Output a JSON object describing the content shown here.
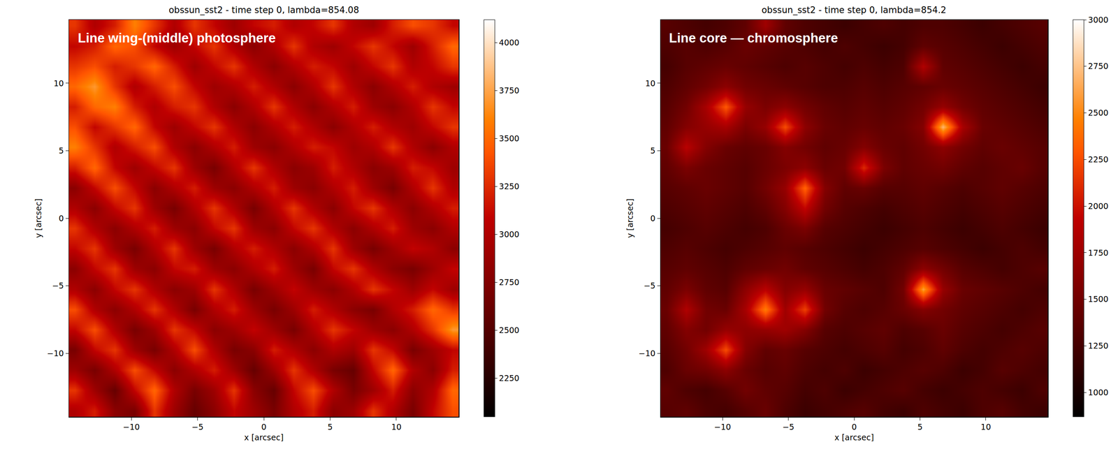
{
  "chart_data": [
    {
      "type": "heatmap",
      "title": "obssun_sst2 - time step 0, lambda=854.08",
      "annotation": "Line wing-(middle) photosphere",
      "x_label": "x [arcsec]",
      "y_label": "y [arcsec]",
      "color": "gist_heat",
      "xlim": [
        -14.7,
        14.7
      ],
      "ylim": [
        -14.7,
        14.7
      ],
      "xticks": [
        -10,
        -5,
        0,
        5,
        10
      ],
      "yticks": [
        -10,
        -5,
        0,
        5,
        10
      ],
      "colorbar_range": [
        2050,
        4120
      ],
      "colorbar_ticks": [
        2250,
        2500,
        2750,
        3000,
        3250,
        3500,
        3750,
        4000
      ],
      "x": [
        -14.25,
        -12.75,
        -11.25,
        -9.75,
        -8.25,
        -6.75,
        -5.25,
        -3.75,
        -2.25,
        -0.75,
        0.75,
        2.25,
        3.75,
        5.25,
        6.75,
        8.25,
        9.75,
        11.25,
        12.75,
        14.25
      ],
      "y": [
        -14.25,
        -12.75,
        -11.25,
        -9.75,
        -8.25,
        -6.75,
        -5.25,
        -3.75,
        -2.25,
        -0.75,
        0.75,
        2.25,
        3.75,
        5.25,
        6.75,
        8.25,
        9.75,
        11.25,
        12.75,
        14.25
      ],
      "z": [
        [
          3000,
          3200,
          2800,
          2700,
          3300,
          2900,
          2600,
          2800,
          3100,
          2900,
          2700,
          3000,
          3200,
          2800,
          2900,
          3300,
          3000,
          2700,
          3100,
          3400
        ],
        [
          3300,
          2900,
          2600,
          3100,
          3500,
          3000,
          2700,
          2900,
          3300,
          2800,
          2600,
          3100,
          3400,
          3000,
          2700,
          2900,
          3200,
          2800,
          3000,
          3500
        ],
        [
          2900,
          2700,
          3000,
          3400,
          3100,
          2800,
          3000,
          3200,
          2900,
          2600,
          2900,
          3300,
          3000,
          2700,
          2600,
          3100,
          3500,
          3000,
          2800,
          3200
        ],
        [
          2700,
          3100,
          3300,
          2900,
          2700,
          3000,
          3400,
          3000,
          2700,
          2800,
          3200,
          3000,
          2800,
          3000,
          2900,
          3300,
          3100,
          2700,
          2900,
          3100
        ],
        [
          3100,
          3400,
          3000,
          2700,
          2900,
          3300,
          3100,
          2800,
          2900,
          3100,
          2900,
          2700,
          3000,
          3300,
          3100,
          2900,
          2800,
          3000,
          3300,
          3700
        ],
        [
          3400,
          3000,
          2800,
          3000,
          3300,
          3000,
          2700,
          3000,
          3200,
          2900,
          2700,
          2900,
          3200,
          3000,
          2800,
          2700,
          3000,
          3200,
          3500,
          3300
        ],
        [
          3000,
          2800,
          3100,
          3300,
          3000,
          2800,
          2900,
          3300,
          3000,
          2700,
          2900,
          3100,
          2900,
          2800,
          3000,
          3300,
          3100,
          2900,
          3100,
          2900
        ],
        [
          2800,
          3100,
          3300,
          2900,
          2800,
          3100,
          3200,
          2900,
          2800,
          3000,
          3200,
          2900,
          2700,
          3100,
          3300,
          3000,
          2800,
          2700,
          2900,
          3100
        ],
        [
          3100,
          3300,
          2900,
          2700,
          3000,
          3300,
          2900,
          2700,
          3000,
          3200,
          3000,
          2800,
          3000,
          3300,
          2900,
          2700,
          2900,
          3100,
          3000,
          2800
        ],
        [
          3300,
          3000,
          2800,
          3000,
          3200,
          2900,
          2800,
          3100,
          3300,
          2900,
          2800,
          3100,
          3300,
          3000,
          2800,
          3000,
          3200,
          2900,
          2800,
          3000
        ],
        [
          3000,
          2800,
          3100,
          3300,
          2900,
          2700,
          3000,
          3300,
          3000,
          2700,
          3000,
          3300,
          3000,
          2800,
          3100,
          3300,
          3000,
          2800,
          3000,
          3200
        ],
        [
          2800,
          3100,
          3400,
          3100,
          2800,
          3000,
          3200,
          2900,
          2800,
          3000,
          3200,
          2900,
          2800,
          3000,
          3200,
          2900,
          2700,
          3000,
          3300,
          3000
        ],
        [
          3200,
          3500,
          3100,
          2900,
          3100,
          3300,
          2900,
          2700,
          3000,
          3300,
          3000,
          2800,
          2900,
          3200,
          3000,
          2800,
          2900,
          3200,
          3100,
          2900
        ],
        [
          3600,
          3300,
          3000,
          3200,
          3400,
          3000,
          2800,
          3000,
          3200,
          2900,
          2800,
          3000,
          3200,
          3100,
          2900,
          3000,
          3300,
          3000,
          2800,
          3000
        ],
        [
          3400,
          3100,
          3300,
          3500,
          3100,
          2900,
          3100,
          3300,
          3000,
          2800,
          3000,
          3200,
          3000,
          2800,
          3000,
          3200,
          3000,
          2900,
          3100,
          3300
        ],
        [
          3200,
          3500,
          3600,
          3200,
          3000,
          3200,
          3300,
          3000,
          2800,
          3000,
          3300,
          3000,
          2800,
          3000,
          3200,
          2900,
          2800,
          3000,
          3300,
          3100
        ],
        [
          3500,
          3700,
          3300,
          3000,
          3200,
          3400,
          3100,
          2900,
          3000,
          3200,
          3000,
          2800,
          3000,
          3300,
          3000,
          2800,
          3000,
          3200,
          3000,
          2900
        ],
        [
          3300,
          3400,
          3200,
          3300,
          3500,
          3200,
          2900,
          3100,
          3300,
          3000,
          2800,
          3000,
          3200,
          3100,
          2900,
          3100,
          3300,
          3000,
          3100,
          3300
        ],
        [
          3100,
          3200,
          3500,
          3400,
          3100,
          2900,
          3100,
          3300,
          3000,
          2800,
          3000,
          3300,
          3000,
          2900,
          3100,
          3300,
          3100,
          2900,
          3200,
          3500
        ],
        [
          3300,
          3000,
          3200,
          3600,
          3300,
          3000,
          3300,
          3100,
          2900,
          3100,
          3200,
          3000,
          3100,
          3300,
          3000,
          2900,
          3200,
          3400,
          3300,
          3100
        ]
      ]
    },
    {
      "type": "heatmap",
      "title": "obssun_sst2 - time step 0, lambda=854.2",
      "annotation": "Line core — chromosphere",
      "x_label": "x [arcsec]",
      "y_label": "y [arcsec]",
      "color": "gist_heat",
      "xlim": [
        -14.7,
        14.7
      ],
      "ylim": [
        -14.7,
        14.7
      ],
      "xticks": [
        -10,
        -5,
        0,
        5,
        10
      ],
      "yticks": [
        -10,
        -5,
        0,
        5,
        10
      ],
      "colorbar_range": [
        870,
        3000
      ],
      "colorbar_ticks": [
        1000,
        1250,
        1500,
        1750,
        2000,
        2250,
        2500,
        2750,
        3000
      ],
      "x": [
        -14.25,
        -12.75,
        -11.25,
        -9.75,
        -8.25,
        -6.75,
        -5.25,
        -3.75,
        -2.25,
        -0.75,
        0.75,
        2.25,
        3.75,
        5.25,
        6.75,
        8.25,
        9.75,
        11.25,
        12.75,
        14.25
      ],
      "y": [
        -14.25,
        -12.75,
        -11.25,
        -9.75,
        -8.25,
        -6.75,
        -5.25,
        -3.75,
        -2.25,
        -0.75,
        0.75,
        2.25,
        3.75,
        5.25,
        6.75,
        8.25,
        9.75,
        11.25,
        12.75,
        14.25
      ],
      "z": [
        [
          1350,
          1400,
          1300,
          1250,
          1350,
          1450,
          1300,
          1200,
          1250,
          1300,
          1350,
          1250,
          1200,
          1300,
          1250,
          1200,
          1300,
          1350,
          1250,
          1200
        ],
        [
          1400,
          1300,
          1250,
          1350,
          1500,
          1400,
          1350,
          1250,
          1300,
          1200,
          1250,
          1300,
          1350,
          1250,
          1200,
          1250,
          1300,
          1250,
          1200,
          1300
        ],
        [
          1300,
          1450,
          1500,
          1650,
          1450,
          1350,
          1400,
          1300,
          1250,
          1300,
          1200,
          1250,
          1300,
          1350,
          1300,
          1200,
          1250,
          1350,
          1300,
          1250
        ],
        [
          1350,
          1500,
          1750,
          2250,
          1600,
          1400,
          1450,
          1350,
          1300,
          1250,
          1300,
          1350,
          1250,
          1300,
          1400,
          1300,
          1250,
          1300,
          1350,
          1300
        ],
        [
          1400,
          1600,
          1500,
          1700,
          1650,
          1700,
          1750,
          1600,
          1350,
          1300,
          1350,
          1400,
          1300,
          1350,
          1450,
          1350,
          1300,
          1250,
          1300,
          1350
        ],
        [
          1450,
          1850,
          1500,
          1450,
          1800,
          2450,
          1750,
          2200,
          1500,
          1350,
          1300,
          1350,
          1450,
          1600,
          1500,
          1400,
          1350,
          1300,
          1250,
          1300
        ],
        [
          1400,
          1550,
          1400,
          1350,
          1650,
          1900,
          1600,
          1700,
          1450,
          1400,
          1350,
          1300,
          1500,
          2600,
          1700,
          1450,
          1400,
          1350,
          1300,
          1250
        ],
        [
          1350,
          1400,
          1350,
          1300,
          1400,
          1450,
          1500,
          1400,
          1350,
          1300,
          1250,
          1300,
          1400,
          1650,
          1500,
          1350,
          1300,
          1250,
          1300,
          1350
        ],
        [
          1300,
          1350,
          1300,
          1250,
          1300,
          1350,
          1400,
          1350,
          1300,
          1250,
          1200,
          1250,
          1300,
          1350,
          1300,
          1250,
          1200,
          1250,
          1300,
          1250
        ],
        [
          1250,
          1300,
          1350,
          1300,
          1250,
          1300,
          1450,
          1550,
          1350,
          1300,
          1250,
          1200,
          1250,
          1300,
          1250,
          1200,
          1250,
          1300,
          1250,
          1200
        ],
        [
          1300,
          1350,
          1400,
          1350,
          1300,
          1400,
          1600,
          1950,
          1500,
          1350,
          1300,
          1250,
          1300,
          1350,
          1300,
          1250,
          1300,
          1350,
          1300,
          1250
        ],
        [
          1350,
          1400,
          1450,
          1400,
          1350,
          1500,
          1700,
          2350,
          1600,
          1400,
          1450,
          1350,
          1350,
          1400,
          1350,
          1300,
          1350,
          1400,
          1350,
          1300
        ],
        [
          1400,
          1550,
          1450,
          1400,
          1350,
          1450,
          1550,
          1650,
          1450,
          1500,
          2100,
          1550,
          1400,
          1450,
          1500,
          1400,
          1350,
          1400,
          1450,
          1350
        ],
        [
          1450,
          1900,
          1600,
          1450,
          1400,
          1450,
          1600,
          1500,
          1400,
          1450,
          1600,
          1450,
          1400,
          1500,
          1650,
          1500,
          1400,
          1450,
          1400,
          1350
        ],
        [
          1400,
          1600,
          1700,
          1800,
          1550,
          1700,
          2250,
          1650,
          1450,
          1400,
          1450,
          1400,
          1450,
          1600,
          2700,
          1800,
          1450,
          1400,
          1350,
          1300
        ],
        [
          1350,
          1500,
          1800,
          2300,
          1700,
          1550,
          1650,
          1500,
          1400,
          1350,
          1400,
          1350,
          1400,
          1500,
          1700,
          1500,
          1400,
          1350,
          1300,
          1250
        ],
        [
          1300,
          1400,
          1500,
          1650,
          1500,
          1450,
          1400,
          1350,
          1300,
          1300,
          1350,
          1300,
          1350,
          1400,
          1450,
          1400,
          1350,
          1300,
          1250,
          1200
        ],
        [
          1250,
          1350,
          1400,
          1450,
          1400,
          1350,
          1300,
          1350,
          1300,
          1250,
          1300,
          1250,
          1300,
          1850,
          1400,
          1350,
          1300,
          1250,
          1200,
          1250
        ],
        [
          1300,
          1350,
          1300,
          1350,
          1450,
          1400,
          1350,
          1300,
          1250,
          1300,
          1250,
          1200,
          1250,
          1400,
          1350,
          1300,
          1250,
          1200,
          1250,
          1300
        ],
        [
          1350,
          1300,
          1250,
          1300,
          1400,
          1750,
          1400,
          1300,
          1250,
          1200,
          1250,
          1300,
          1250,
          1300,
          1300,
          1250,
          1200,
          1250,
          1300,
          1350
        ]
      ]
    }
  ]
}
